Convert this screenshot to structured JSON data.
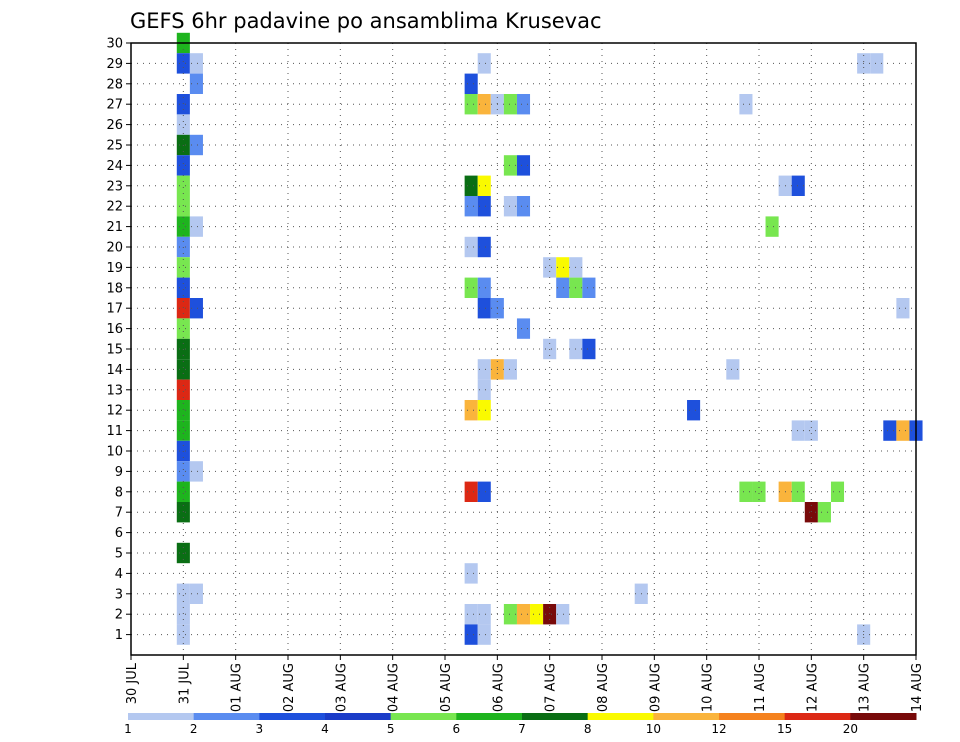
{
  "chart_data": {
    "type": "heatmap",
    "title": "GEFS 6hr padavine po ansamblima Krusevac",
    "xlabel": "",
    "ylabel": "",
    "x_ticks": [
      "30 JUL",
      "31 JUL",
      "01 AUG",
      "02 AUG",
      "03 AUG",
      "04 AUG",
      "05 AUG",
      "06 AUG",
      "07 AUG",
      "08 AUG",
      "09 AUG",
      "10 AUG",
      "11 AUG",
      "12 AUG",
      "13 AUG",
      "14 AUG"
    ],
    "y_ticks": [
      "1",
      "2",
      "3",
      "4",
      "5",
      "6",
      "7",
      "8",
      "9",
      "10",
      "11",
      "12",
      "13",
      "14",
      "15",
      "16",
      "17",
      "18",
      "19",
      "20",
      "21",
      "22",
      "23",
      "24",
      "25",
      "26",
      "27",
      "28",
      "29",
      "30"
    ],
    "x_unit": "6h steps since 30 JUL 00Z",
    "x_range": [
      0,
      60
    ],
    "y_range": [
      0,
      30
    ],
    "grid": true,
    "colorbar": {
      "labels": [
        "1",
        "2",
        "3",
        "4",
        "5",
        "6",
        "7",
        "8",
        "10",
        "12",
        "15",
        "20"
      ],
      "colors": [
        "#b4c8f0",
        "#5a8cf0",
        "#1e50dc",
        "#1b3cc8",
        "#78e650",
        "#1eb41e",
        "#0a6e14",
        "#fafa00",
        "#fab43c",
        "#f5821e",
        "#dc2814",
        "#780a0a"
      ]
    },
    "cells": [
      [
        4,
        30,
        5
      ],
      [
        4,
        29,
        2
      ],
      [
        5,
        29,
        0
      ],
      [
        5,
        28,
        1
      ],
      [
        4,
        27,
        2
      ],
      [
        4,
        26,
        0
      ],
      [
        4,
        25,
        6
      ],
      [
        5,
        25,
        1
      ],
      [
        4,
        24,
        2
      ],
      [
        4,
        23,
        4
      ],
      [
        4,
        22,
        4
      ],
      [
        4,
        21,
        5
      ],
      [
        5,
        21,
        0
      ],
      [
        4,
        20,
        1
      ],
      [
        4,
        19,
        4
      ],
      [
        4,
        18,
        2
      ],
      [
        4,
        17,
        10
      ],
      [
        5,
        17,
        2
      ],
      [
        4,
        16,
        4
      ],
      [
        4,
        15,
        6
      ],
      [
        4,
        14,
        6
      ],
      [
        4,
        13,
        10
      ],
      [
        4,
        12,
        5
      ],
      [
        4,
        11,
        5
      ],
      [
        4,
        10,
        2
      ],
      [
        4,
        9,
        1
      ],
      [
        5,
        9,
        0
      ],
      [
        4,
        8,
        5
      ],
      [
        4,
        7,
        6
      ],
      [
        4,
        5,
        6
      ],
      [
        4,
        3,
        0
      ],
      [
        5,
        3,
        0
      ],
      [
        4,
        2,
        0
      ],
      [
        4,
        1,
        0
      ],
      [
        27,
        29,
        0
      ],
      [
        56,
        29,
        0
      ],
      [
        57,
        29,
        0
      ],
      [
        26,
        28,
        2
      ],
      [
        26,
        27,
        4
      ],
      [
        27,
        27,
        8
      ],
      [
        28,
        27,
        0
      ],
      [
        29,
        27,
        4
      ],
      [
        30,
        27,
        1
      ],
      [
        47,
        27,
        0
      ],
      [
        29,
        24,
        4
      ],
      [
        30,
        24,
        2
      ],
      [
        26,
        23,
        6
      ],
      [
        27,
        23,
        7
      ],
      [
        50,
        23,
        0
      ],
      [
        51,
        23,
        2
      ],
      [
        26,
        22,
        1
      ],
      [
        27,
        22,
        2
      ],
      [
        29,
        22,
        0
      ],
      [
        30,
        22,
        1
      ],
      [
        49,
        21,
        4
      ],
      [
        26,
        20,
        0
      ],
      [
        27,
        20,
        2
      ],
      [
        32,
        19,
        0
      ],
      [
        33,
        19,
        7
      ],
      [
        34,
        19,
        0
      ],
      [
        26,
        18,
        4
      ],
      [
        27,
        18,
        1
      ],
      [
        33,
        18,
        1
      ],
      [
        34,
        18,
        4
      ],
      [
        35,
        18,
        1
      ],
      [
        27,
        17,
        2
      ],
      [
        28,
        17,
        1
      ],
      [
        59,
        17,
        0
      ],
      [
        30,
        16,
        1
      ],
      [
        32,
        15,
        0
      ],
      [
        34,
        15,
        0
      ],
      [
        35,
        15,
        2
      ],
      [
        27,
        14,
        0
      ],
      [
        28,
        14,
        8
      ],
      [
        29,
        14,
        0
      ],
      [
        46,
        14,
        0
      ],
      [
        27,
        13,
        0
      ],
      [
        26,
        12,
        8
      ],
      [
        27,
        12,
        7
      ],
      [
        43,
        12,
        2
      ],
      [
        51,
        11,
        0
      ],
      [
        52,
        11,
        0
      ],
      [
        58,
        11,
        2
      ],
      [
        59,
        11,
        8
      ],
      [
        60,
        11,
        2
      ],
      [
        26,
        8,
        10
      ],
      [
        27,
        8,
        2
      ],
      [
        47,
        8,
        4
      ],
      [
        48,
        8,
        4
      ],
      [
        50,
        8,
        8
      ],
      [
        51,
        8,
        4
      ],
      [
        54,
        8,
        4
      ],
      [
        52,
        7,
        11
      ],
      [
        53,
        7,
        4
      ],
      [
        26,
        4,
        0
      ],
      [
        39,
        3,
        0
      ],
      [
        26,
        2,
        0
      ],
      [
        27,
        2,
        0
      ],
      [
        29,
        2,
        4
      ],
      [
        30,
        2,
        8
      ],
      [
        31,
        2,
        7
      ],
      [
        32,
        2,
        11
      ],
      [
        33,
        2,
        0
      ],
      [
        26,
        1,
        2
      ],
      [
        27,
        1,
        0
      ],
      [
        56,
        1,
        0
      ]
    ]
  }
}
